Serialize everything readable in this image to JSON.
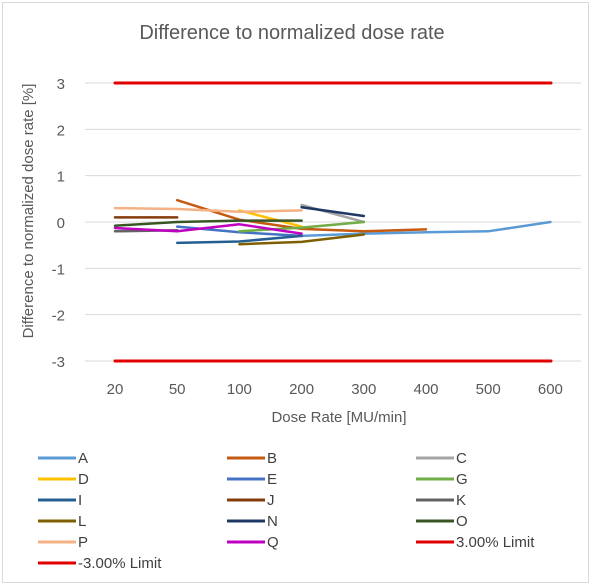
{
  "chart_data": {
    "type": "line",
    "title": "Difference to normalized dose rate",
    "xlabel": "Dose Rate [MU/min]",
    "ylabel": "Difference to normalized dose rate [%]",
    "categories": [
      "20",
      "50",
      "100",
      "200",
      "300",
      "400",
      "500",
      "600"
    ],
    "ylim": [
      -3,
      3
    ],
    "yticks": [
      3,
      2,
      1,
      0,
      -1,
      -2,
      -3
    ],
    "grid": true,
    "legend_position": "bottom",
    "series": [
      {
        "name": "A",
        "color": "#5b9bd5",
        "values": [
          null,
          null,
          null,
          -0.3,
          -0.25,
          -0.22,
          -0.2,
          0.0
        ]
      },
      {
        "name": "B",
        "color": "#c55a11",
        "values": [
          null,
          0.47,
          0.05,
          -0.15,
          -0.2,
          -0.16,
          null,
          null
        ]
      },
      {
        "name": "C",
        "color": "#a5a5a5",
        "values": [
          null,
          null,
          null,
          0.37,
          0.0,
          null,
          null,
          null
        ]
      },
      {
        "name": "D",
        "color": "#ffc000",
        "values": [
          null,
          null,
          0.25,
          -0.1,
          null,
          null,
          null,
          null
        ]
      },
      {
        "name": "E",
        "color": "#4472c4",
        "values": [
          null,
          -0.1,
          -0.22,
          -0.3,
          null,
          null,
          null,
          null
        ]
      },
      {
        "name": "G",
        "color": "#70ad47",
        "values": [
          null,
          null,
          -0.2,
          -0.12,
          0.0,
          null,
          null,
          null
        ]
      },
      {
        "name": "I",
        "color": "#255e91",
        "values": [
          null,
          -0.45,
          -0.42,
          -0.3,
          null,
          null,
          null,
          null
        ]
      },
      {
        "name": "J",
        "color": "#843c0c",
        "values": [
          0.1,
          0.1,
          null,
          null,
          null,
          null,
          null,
          null
        ]
      },
      {
        "name": "K",
        "color": "#636363",
        "values": [
          -0.2,
          -0.18,
          null,
          null,
          null,
          null,
          null,
          null
        ]
      },
      {
        "name": "L",
        "color": "#7f6000",
        "values": [
          null,
          null,
          -0.48,
          -0.43,
          -0.27,
          null,
          null,
          null
        ]
      },
      {
        "name": "N",
        "color": "#203864",
        "values": [
          null,
          null,
          null,
          0.32,
          0.13,
          null,
          null,
          null
        ]
      },
      {
        "name": "O",
        "color": "#375623",
        "values": [
          -0.08,
          0.0,
          0.03,
          0.03,
          null,
          null,
          null,
          null
        ]
      },
      {
        "name": "P",
        "color": "#f4b183",
        "values": [
          0.3,
          0.28,
          0.22,
          0.25,
          null,
          null,
          null,
          null
        ]
      },
      {
        "name": "Q",
        "color": "#c000c0",
        "values": [
          -0.13,
          -0.2,
          -0.05,
          -0.25,
          null,
          null,
          null,
          null
        ]
      },
      {
        "name": "3.00% Limit",
        "color": "#e00000",
        "values": [
          3,
          3,
          3,
          3,
          3,
          3,
          3,
          3
        ]
      },
      {
        "name": "-3.00% Limit",
        "color": "#e00000",
        "values": [
          -3,
          -3,
          -3,
          -3,
          -3,
          -3,
          -3,
          -3
        ]
      }
    ]
  }
}
